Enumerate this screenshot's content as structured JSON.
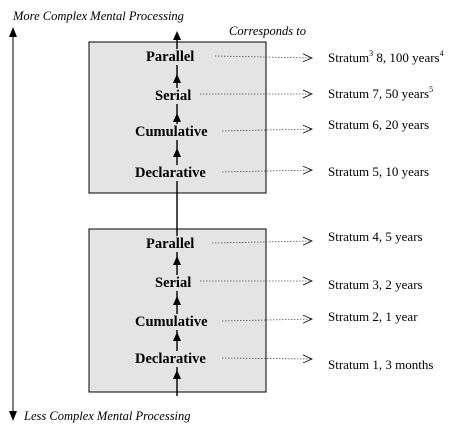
{
  "axis": {
    "top_label": "More Complex Mental Processing",
    "bottom_label": "Less Complex Mental Processing"
  },
  "corresponds_label": "Corresponds to",
  "upper_box": {
    "stages": [
      "Parallel",
      "Serial",
      "Cumulative",
      "Declarative"
    ]
  },
  "lower_box": {
    "stages": [
      "Parallel",
      "Serial",
      "Cumulative",
      "Declarative"
    ]
  },
  "strata": [
    {
      "text": "Stratum",
      "sup": "3",
      "rest": " 8, 100 years",
      "sup2": "4"
    },
    {
      "text": "Stratum 7, 50 years",
      "sup": "",
      "rest": "",
      "sup2": "5"
    },
    {
      "text": "Stratum 6, 20 years",
      "sup": "",
      "rest": "",
      "sup2": ""
    },
    {
      "text": "Stratum 5, 10 years",
      "sup": "",
      "rest": "",
      "sup2": ""
    },
    {
      "text": "Stratum 4, 5 years",
      "sup": "",
      "rest": "",
      "sup2": ""
    },
    {
      "text": "Stratum 3, 2 years",
      "sup": "",
      "rest": "",
      "sup2": ""
    },
    {
      "text": "Stratum 2, 1 year",
      "sup": "",
      "rest": "",
      "sup2": ""
    },
    {
      "text": "Stratum 1, 3 months",
      "sup": "",
      "rest": "",
      "sup2": ""
    }
  ],
  "colors": {
    "box_fill": "#e4e4e4",
    "line": "#000000"
  }
}
